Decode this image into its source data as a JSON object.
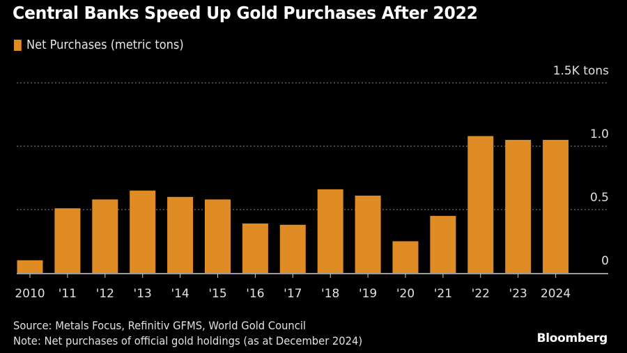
{
  "chart_data": {
    "type": "bar",
    "title": "Central Banks Speed Up Gold Purchases After 2022",
    "legend": [
      {
        "name": "Net Purchases (metric tons)",
        "color": "#e08c24"
      }
    ],
    "legend_position": "top-left",
    "categories": [
      "2010",
      "'11",
      "'12",
      "'13",
      "'14",
      "'15",
      "'16",
      "'17",
      "'18",
      "'19",
      "'20",
      "'21",
      "'22",
      "'23",
      "2024"
    ],
    "series": [
      {
        "name": "Net Purchases (metric tons)",
        "unit": "K tons",
        "color": "#e08c24",
        "values": [
          0.1,
          0.51,
          0.58,
          0.65,
          0.6,
          0.58,
          0.39,
          0.38,
          0.66,
          0.61,
          0.25,
          0.45,
          1.08,
          1.05,
          1.05
        ]
      }
    ],
    "xlabel": "",
    "ylabel": "",
    "ylim": [
      0,
      1.5
    ],
    "yticks": [
      {
        "value": 0,
        "label": "0"
      },
      {
        "value": 0.5,
        "label": "0.5"
      },
      {
        "value": 1.0,
        "label": "1.0"
      },
      {
        "value": 1.5,
        "label": "1.5K tons"
      }
    ],
    "y_axis_side": "right",
    "grid": true
  },
  "footer": {
    "source": "Source: Metals Focus, Refinitiv GFMS, World Gold Council",
    "note": "Note: Net purchases of official gold holdings (as at December 2024)",
    "brand": "Bloomberg"
  },
  "colors": {
    "background": "#000000",
    "bar": "#e08c24",
    "grid": "#8a8a8a",
    "axis": "#d0d0d0"
  }
}
